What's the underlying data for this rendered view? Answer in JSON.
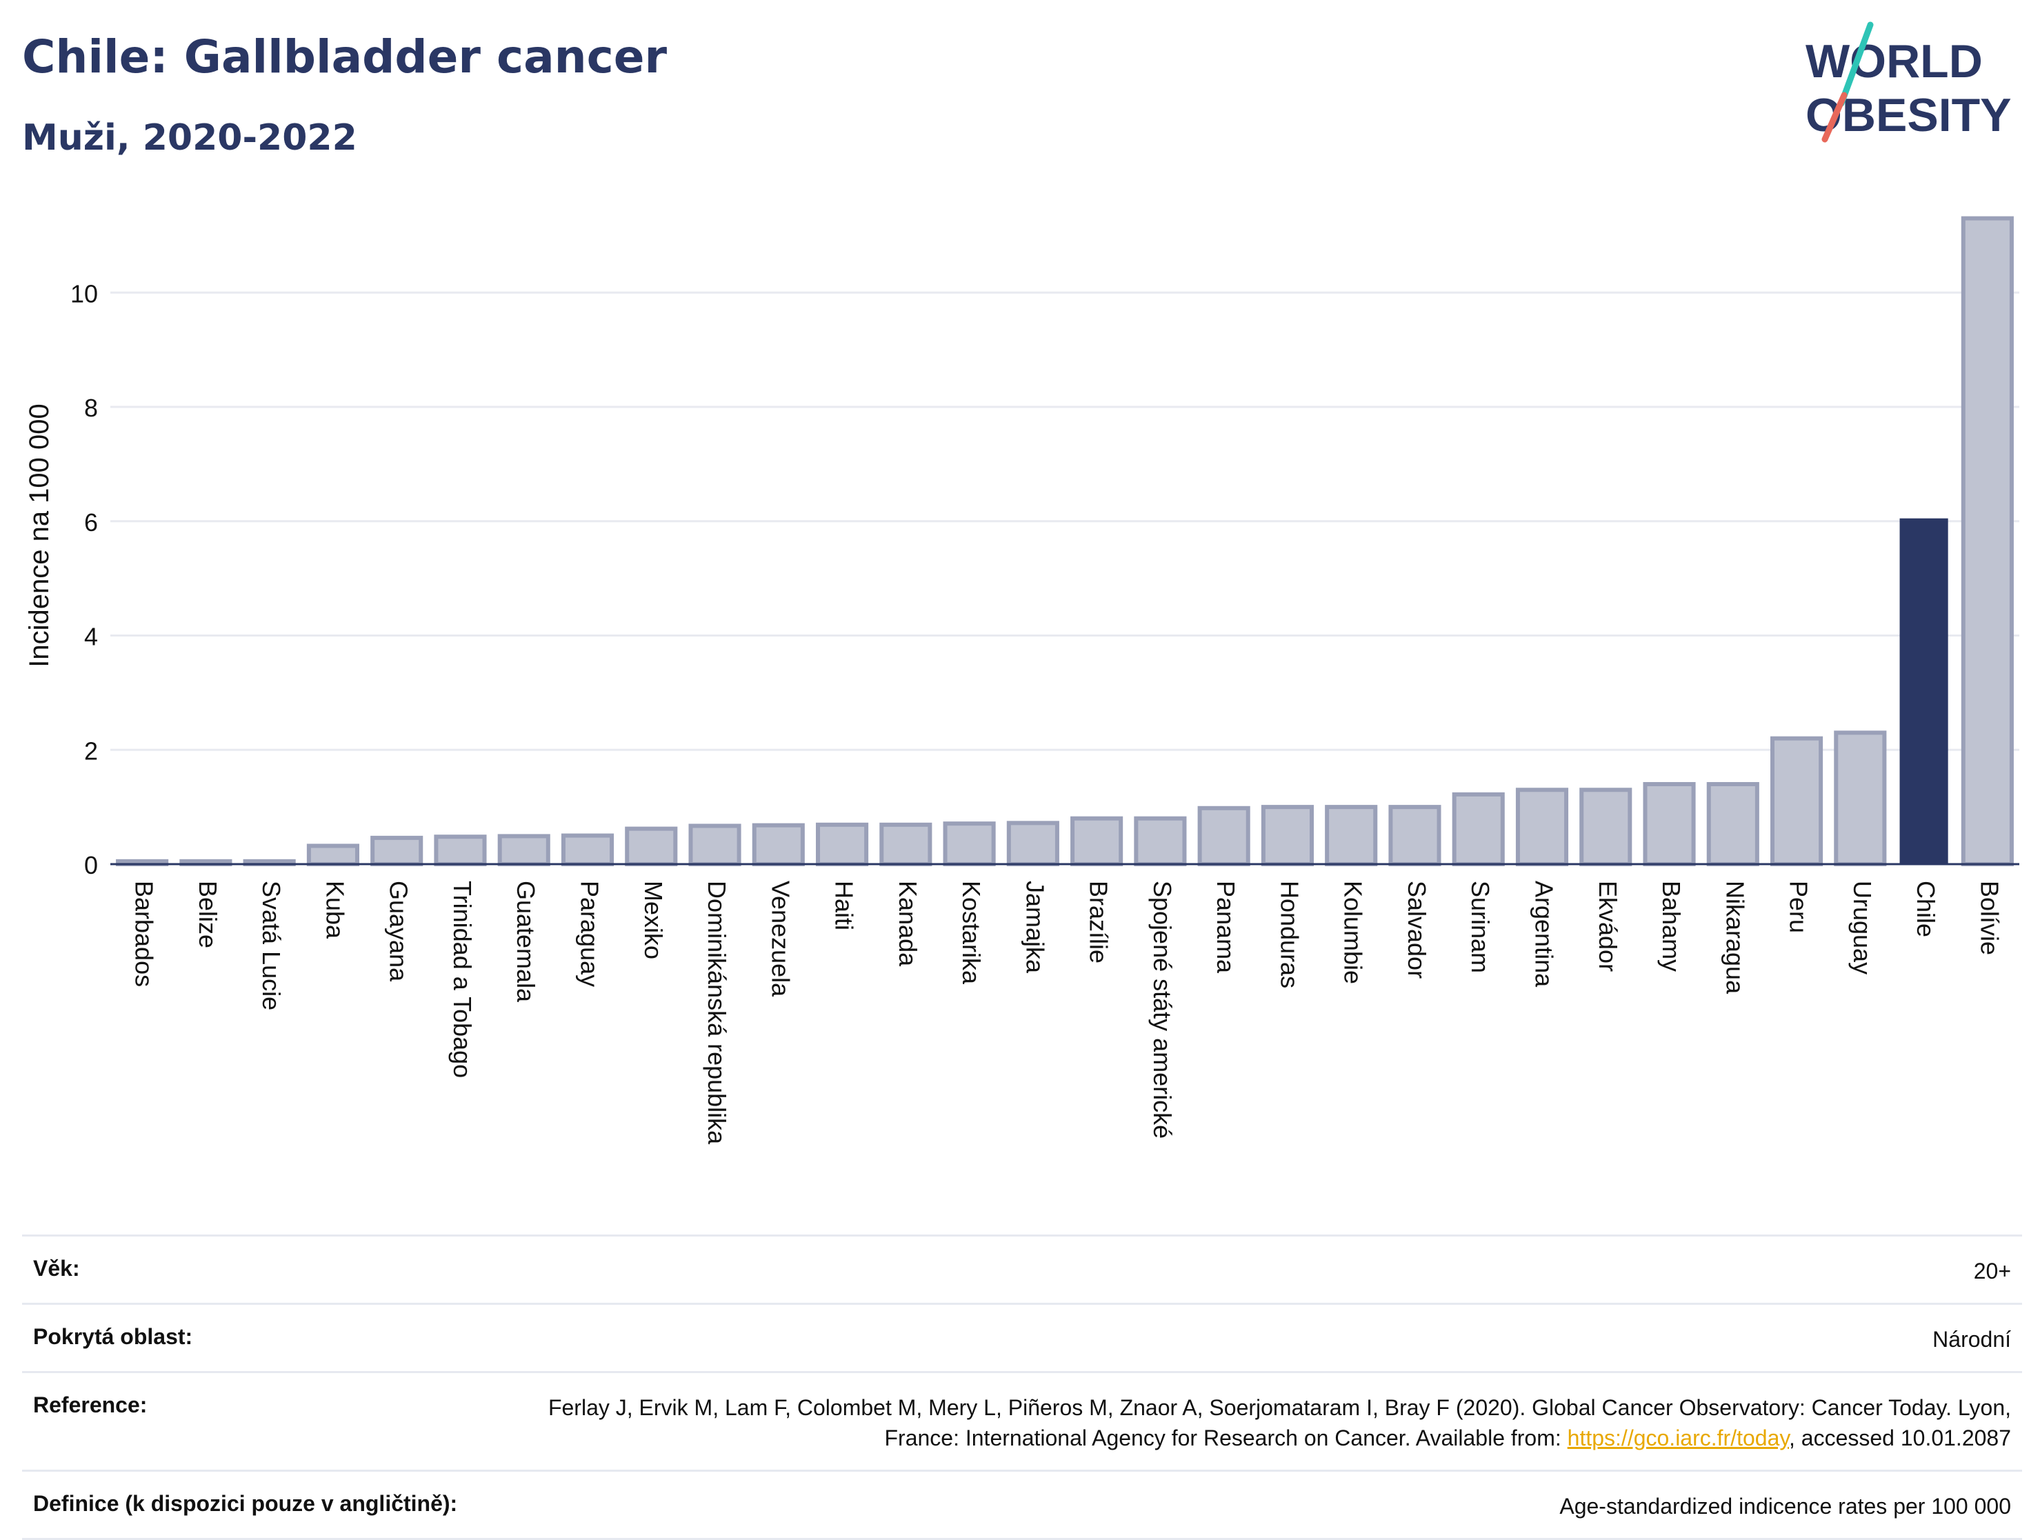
{
  "header": {
    "title": "Chile: Gallbladder cancer",
    "subtitle": "Muži, 2020-2022"
  },
  "logo": {
    "line1": "WORLD",
    "line2": "OBESITY"
  },
  "colors": {
    "highlight": "#2a3764",
    "bar": "#bfc3d1",
    "bar_stroke": "#9aa0b8",
    "accent_teal": "#2ec4b6",
    "accent_red": "#e8685a",
    "link": "#e8a800"
  },
  "chart_data": {
    "type": "bar",
    "ylabel": "Incidence na 100 000",
    "ylim": [
      0,
      11.5
    ],
    "yticks": [
      0,
      2,
      4,
      6,
      8,
      10
    ],
    "grid": true,
    "highlight": "Chile",
    "categories": [
      "Barbados",
      "Belize",
      "Svatá Lucie",
      "Kuba",
      "Guayana",
      "Trinidad a Tobago",
      "Guatemala",
      "Paraguay",
      "Mexiko",
      "Dominikánská republika",
      "Venezuela",
      "Haiti",
      "Kanada",
      "Kostarika",
      "Jamajka",
      "Brazílie",
      "Spojené státy americké",
      "Panama",
      "Honduras",
      "Kolumbie",
      "Salvador",
      "Surinam",
      "Argentina",
      "Ekvádor",
      "Bahamy",
      "Nikaragua",
      "Peru",
      "Uruguay",
      "Chile",
      "Bolívie"
    ],
    "values": [
      0.05,
      0.05,
      0.05,
      0.32,
      0.46,
      0.48,
      0.49,
      0.5,
      0.62,
      0.67,
      0.68,
      0.69,
      0.69,
      0.71,
      0.72,
      0.8,
      0.8,
      0.98,
      1.0,
      1.0,
      1.0,
      1.22,
      1.3,
      1.3,
      1.4,
      1.4,
      2.2,
      2.3,
      6.05,
      11.3
    ]
  },
  "info": [
    {
      "label": "Věk:",
      "value": "20+"
    },
    {
      "label": "Pokrytá oblast:",
      "value": "Národní"
    },
    {
      "label": "Reference:",
      "value_before": "Ferlay J, Ervik M, Lam F, Colombet M, Mery L, Piñeros M, Znaor A, Soerjomataram I, Bray F (2020). Global Cancer Observatory: Cancer Today. Lyon, France: International Agency for Research on Cancer. Available from: ",
      "link": "https://gco.iarc.fr/today",
      "value_after": ", accessed 10.01.2087"
    },
    {
      "label": "Definice (k dispozici pouze v angličtině):",
      "value": "Age-standardized indicence rates per 100 000"
    }
  ]
}
